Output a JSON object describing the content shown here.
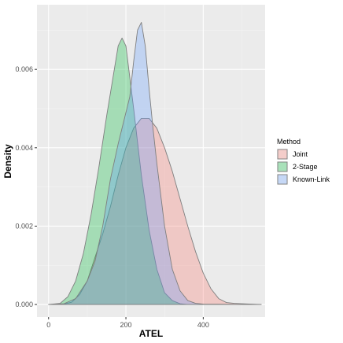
{
  "chart_data": {
    "type": "area",
    "title": "",
    "xlabel": "ATEL",
    "ylabel": "Density",
    "xlim": [
      -30,
      560
    ],
    "ylim": [
      -0.00032,
      0.00765
    ],
    "xticks": [
      0,
      200,
      400
    ],
    "yticks": [
      0.0,
      0.002,
      0.004,
      0.006
    ],
    "ytick_labels": [
      "0.000",
      "0.002",
      "0.004",
      "0.006"
    ],
    "grid": true,
    "legend": {
      "title": "Method",
      "position": "right",
      "entries": [
        "Joint",
        "2-Stage",
        "Known-Link"
      ]
    },
    "series": [
      {
        "name": "Joint",
        "fill": "#F8766D",
        "x": [
          0,
          40,
          60,
          80,
          100,
          120,
          140,
          160,
          180,
          200,
          220,
          240,
          260,
          280,
          300,
          320,
          340,
          360,
          380,
          400,
          420,
          440,
          460,
          480,
          500,
          550
        ],
        "y": [
          0,
          1e-05,
          6e-05,
          0.00025,
          0.0006,
          0.0012,
          0.0018,
          0.0025,
          0.0033,
          0.004,
          0.0045,
          0.00475,
          0.00475,
          0.0045,
          0.004,
          0.0034,
          0.0027,
          0.002,
          0.00135,
          0.0008,
          0.0004,
          0.00015,
          5e-05,
          3e-05,
          2e-05,
          0
        ]
      },
      {
        "name": "2-Stage",
        "fill": "#00BA38",
        "x": [
          0,
          30,
          50,
          70,
          90,
          110,
          130,
          150,
          170,
          180,
          190,
          200,
          210,
          220,
          240,
          260,
          280,
          300,
          320,
          340,
          360,
          550
        ],
        "y": [
          0,
          3e-05,
          0.0002,
          0.0006,
          0.0013,
          0.0023,
          0.0035,
          0.0048,
          0.006,
          0.0066,
          0.0068,
          0.0066,
          0.0058,
          0.005,
          0.0033,
          0.0019,
          0.0009,
          0.0003,
          0.0001,
          2e-05,
          0,
          0
        ]
      },
      {
        "name": "Known-Link",
        "fill": "#619CFF",
        "x": [
          0,
          40,
          70,
          100,
          120,
          140,
          160,
          180,
          200,
          210,
          220,
          230,
          240,
          250,
          260,
          270,
          280,
          300,
          320,
          340,
          360,
          380,
          400,
          550
        ],
        "y": [
          0,
          2e-05,
          0.00015,
          0.0006,
          0.0011,
          0.002,
          0.0032,
          0.0041,
          0.0049,
          0.0053,
          0.0062,
          0.007,
          0.0072,
          0.0066,
          0.0055,
          0.0045,
          0.0036,
          0.002,
          0.0009,
          0.00035,
          0.0001,
          3e-05,
          1e-05,
          0
        ]
      }
    ]
  }
}
